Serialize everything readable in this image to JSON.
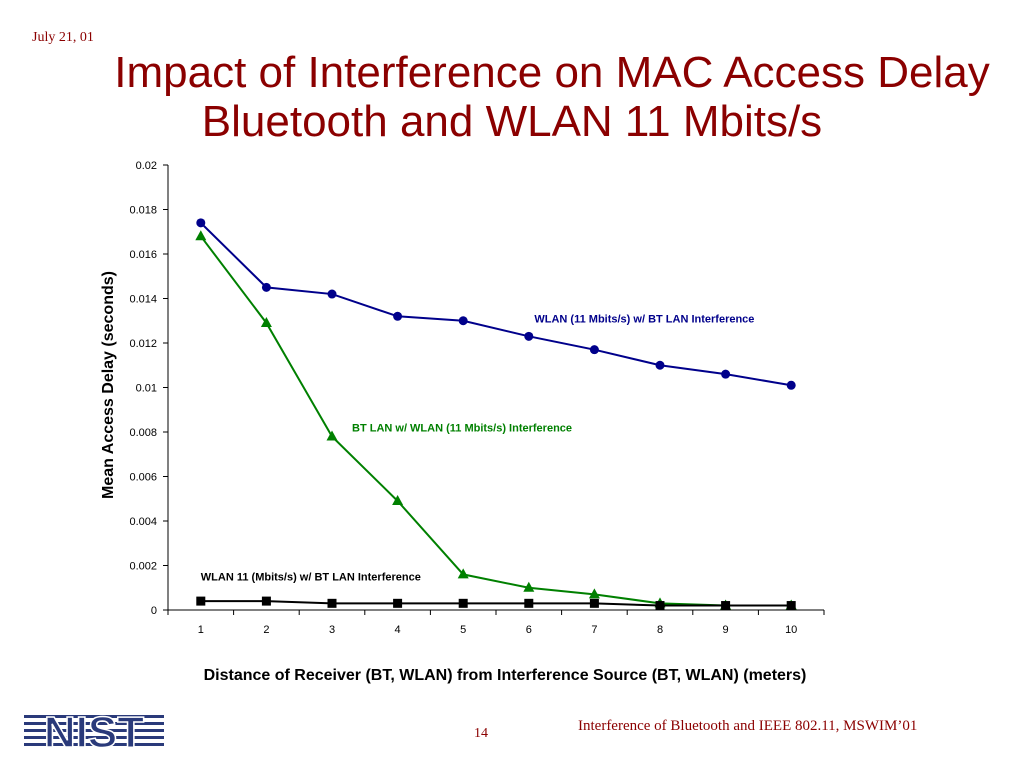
{
  "slide": {
    "date": "July 21, 01",
    "title_line1": "Impact of Interference on MAC Access Delay",
    "title_line2": "Bluetooth and WLAN 11 Mbits/s",
    "page_number": "14",
    "footer": "Interference of Bluetooth and IEEE 802.11, MSWIM’01",
    "logo_text": "NIST"
  },
  "colors": {
    "title": "#8b0000",
    "wlan_bt": "#00008b",
    "bt_wlan": "#008000",
    "wlan_bt_low": "#000000"
  },
  "chart_data": {
    "type": "line",
    "title": "",
    "xlabel": "Distance of Receiver (BT, WLAN) from Interference Source (BT, WLAN) (meters)",
    "ylabel": "Mean Access Delay (seconds)",
    "x": [
      1,
      2,
      3,
      4,
      5,
      6,
      7,
      8,
      9,
      10
    ],
    "xticks": [
      "1",
      "2",
      "3",
      "4",
      "5",
      "6",
      "7",
      "8",
      "9",
      "10"
    ],
    "ylim": [
      0,
      0.02
    ],
    "yticks": [
      "0",
      "0.002",
      "0.004",
      "0.006",
      "0.008",
      "0.01",
      "0.012",
      "0.014",
      "0.016",
      "0.018",
      "0.02"
    ],
    "grid": false,
    "series": [
      {
        "name": "WLAN (11 Mbits/s) w/ BT LAN Interference",
        "marker": "circle",
        "color": "#00008b",
        "values": [
          0.0174,
          0.0145,
          0.0142,
          0.0132,
          0.013,
          0.0123,
          0.0117,
          0.011,
          0.0106,
          0.0101
        ]
      },
      {
        "name": "BT LAN w/ WLAN (11 Mbits/s) Interference",
        "marker": "triangle",
        "color": "#008000",
        "values": [
          0.0168,
          0.0129,
          0.0078,
          0.0049,
          0.0016,
          0.001,
          0.0007,
          0.0003,
          0.0002,
          0.0002
        ]
      },
      {
        "name": "WLAN 11 (Mbits/s) w/ BT LAN Interference",
        "marker": "square",
        "color": "#000000",
        "values": [
          0.0004,
          0.0004,
          0.0003,
          0.0003,
          0.0003,
          0.0003,
          0.0003,
          0.0002,
          0.0002,
          0.0002
        ]
      }
    ]
  }
}
